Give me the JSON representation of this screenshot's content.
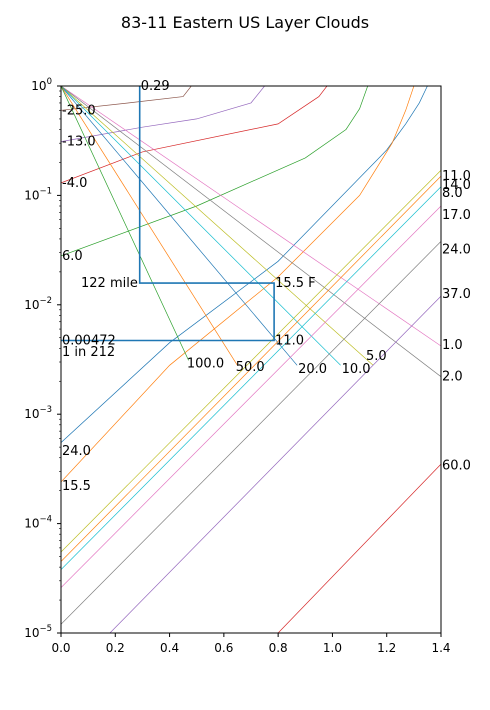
{
  "chart_data": {
    "type": "line",
    "title": "83-11 Eastern US Layer Clouds",
    "xlabel": "",
    "ylabel": "",
    "xlim": [
      0.0,
      1.4
    ],
    "ylim": [
      1e-05,
      1.0
    ],
    "yscale": "log",
    "grid": false,
    "x_ticks": [
      {
        "v": 0.0,
        "label": "0.0"
      },
      {
        "v": 0.2,
        "label": "0.2"
      },
      {
        "v": 0.4,
        "label": "0.4"
      },
      {
        "v": 0.6,
        "label": "0.6"
      },
      {
        "v": 0.8,
        "label": "0.8"
      },
      {
        "v": 1.0,
        "label": "1.0"
      },
      {
        "v": 1.2,
        "label": "1.2"
      },
      {
        "v": 1.4,
        "label": "1.4"
      }
    ],
    "y_ticks": [
      {
        "v": 1.0,
        "base": "10",
        "exp": "0"
      },
      {
        "v": 0.1,
        "base": "10",
        "exp": "−1"
      },
      {
        "v": 0.01,
        "base": "10",
        "exp": "−2"
      },
      {
        "v": 0.001,
        "base": "10",
        "exp": "−3"
      },
      {
        "v": 0.0001,
        "base": "10",
        "exp": "−4"
      },
      {
        "v": 1e-05,
        "base": "10",
        "exp": "−5"
      }
    ],
    "series": [
      {
        "color": "#1f77b4",
        "points": [
          [
            0.0,
            0.00055
          ],
          [
            0.4,
            0.0045
          ],
          [
            0.8,
            0.025
          ],
          [
            1.2,
            0.26
          ],
          [
            1.27,
            0.45
          ],
          [
            1.32,
            0.7
          ],
          [
            1.35,
            1.0
          ]
        ]
      },
      {
        "color": "#ff7f0e",
        "points": [
          [
            0.0,
            0.00024
          ],
          [
            0.4,
            0.0028
          ],
          [
            0.8,
            0.018
          ],
          [
            1.1,
            0.1
          ],
          [
            1.22,
            0.3
          ],
          [
            1.27,
            0.6
          ],
          [
            1.3,
            1.0
          ]
        ]
      },
      {
        "color": "#2ca02c",
        "points": [
          [
            0.0,
            0.028
          ],
          [
            0.5,
            0.08
          ],
          [
            0.9,
            0.22
          ],
          [
            1.05,
            0.4
          ],
          [
            1.1,
            0.62
          ],
          [
            1.13,
            1.0
          ]
        ]
      },
      {
        "color": "#d62728",
        "points": [
          [
            0.0,
            0.13
          ],
          [
            0.3,
            0.25
          ],
          [
            0.8,
            0.45
          ],
          [
            0.95,
            0.8
          ],
          [
            0.98,
            1.0
          ]
        ]
      },
      {
        "color": "#9467bd",
        "points": [
          [
            0.0,
            0.31
          ],
          [
            0.3,
            0.42
          ],
          [
            0.5,
            0.5
          ],
          [
            0.7,
            0.7
          ],
          [
            0.75,
            1.0
          ]
        ]
      },
      {
        "color": "#8c564b",
        "points": [
          [
            0.0,
            0.6
          ],
          [
            0.25,
            0.7
          ],
          [
            0.45,
            0.8
          ],
          [
            0.48,
            1.0
          ]
        ]
      },
      {
        "color": "#e377c2",
        "points": [
          [
            0.0,
            1.0
          ],
          [
            1.4,
            0.0042
          ]
        ]
      },
      {
        "color": "#7f7f7f",
        "points": [
          [
            0.0,
            1.0
          ],
          [
            1.4,
            0.0022
          ]
        ]
      },
      {
        "color": "#bcbd22",
        "points": [
          [
            0.0,
            1.0
          ],
          [
            1.15,
            0.0028
          ]
        ]
      },
      {
        "color": "#17becf",
        "points": [
          [
            0.0,
            1.0
          ],
          [
            1.03,
            0.0028
          ]
        ]
      },
      {
        "color": "#1f77b4",
        "points": [
          [
            0.0,
            1.0
          ],
          [
            0.87,
            0.0028
          ]
        ]
      },
      {
        "color": "#ff7f0e",
        "points": [
          [
            0.0,
            1.0
          ],
          [
            0.65,
            0.0028
          ]
        ]
      },
      {
        "color": "#2ca02c",
        "points": [
          [
            0.0,
            1.0
          ],
          [
            0.47,
            0.0031
          ]
        ]
      },
      {
        "color": "#bcbd22",
        "points": [
          [
            0.0,
            5.5e-05
          ],
          [
            1.4,
            0.17
          ]
        ]
      },
      {
        "color": "#17becf",
        "points": [
          [
            0.0,
            3.8e-05
          ],
          [
            1.4,
            0.12
          ]
        ]
      },
      {
        "color": "#e377c2",
        "points": [
          [
            0.0,
            2.6e-05
          ],
          [
            1.4,
            0.08
          ]
        ]
      },
      {
        "color": "#7f7f7f",
        "points": [
          [
            0.0,
            1.2e-05
          ],
          [
            1.4,
            0.038
          ]
        ]
      },
      {
        "color": "#9467bd",
        "points": [
          [
            0.18,
            1e-05
          ],
          [
            1.4,
            0.012
          ]
        ]
      },
      {
        "color": "#d62728",
        "points": [
          [
            0.8,
            1e-05
          ],
          [
            1.4,
            0.00035
          ]
        ]
      },
      {
        "color": "#ff7f0e",
        "points": [
          [
            0.0,
            4.5e-05
          ],
          [
            1.4,
            0.15
          ]
        ]
      }
    ],
    "reference_lines": [
      {
        "points": [
          [
            0.29,
            1.0
          ],
          [
            0.29,
            0.0158
          ],
          [
            0.785,
            0.0158
          ],
          [
            0.785,
            0.00472
          ],
          [
            0.0,
            0.00472
          ]
        ]
      }
    ],
    "annotations": [
      {
        "text": "0.29",
        "x": 0.29,
        "y": 1.0
      },
      {
        "text": "-25.0",
        "x": 0.0,
        "y": 0.6
      },
      {
        "text": "-13.0",
        "x": 0.0,
        "y": 0.31
      },
      {
        "text": "-4.0",
        "x": 0.0,
        "y": 0.13
      },
      {
        "text": "6.0",
        "x": 0.0,
        "y": 0.028
      },
      {
        "text": "122 mile",
        "x": 0.07,
        "y": 0.0158
      },
      {
        "text": "15.5 F",
        "x": 0.785,
        "y": 0.0158
      },
      {
        "text": "0.00472",
        "x": 0.0,
        "y": 0.00472
      },
      {
        "text": "1 in 212",
        "x": 0.0,
        "y": 0.0037
      },
      {
        "text": "11.0",
        "x": 0.785,
        "y": 0.00472
      },
      {
        "text": "100.0",
        "x": 0.46,
        "y": 0.0029
      },
      {
        "text": "50.0",
        "x": 0.64,
        "y": 0.0027
      },
      {
        "text": "20.0",
        "x": 0.87,
        "y": 0.0026
      },
      {
        "text": "10.0",
        "x": 1.03,
        "y": 0.0026
      },
      {
        "text": "5.0",
        "x": 1.12,
        "y": 0.0034
      },
      {
        "text": "24.0",
        "x": 0.0,
        "y": 0.00046
      },
      {
        "text": "15.5",
        "x": 0.0,
        "y": 0.00022
      },
      {
        "text": "11.0",
        "x": 1.4,
        "y": 0.15
      },
      {
        "text": "14.0",
        "x": 1.4,
        "y": 0.125
      },
      {
        "text": "8.0",
        "x": 1.4,
        "y": 0.105
      },
      {
        "text": "17.0",
        "x": 1.4,
        "y": 0.066
      },
      {
        "text": "24.0",
        "x": 1.4,
        "y": 0.032
      },
      {
        "text": "37.0",
        "x": 1.4,
        "y": 0.0125
      },
      {
        "text": "1.0",
        "x": 1.4,
        "y": 0.0043
      },
      {
        "text": "2.0",
        "x": 1.4,
        "y": 0.0022
      },
      {
        "text": "60.0",
        "x": 1.4,
        "y": 0.00034
      }
    ]
  }
}
